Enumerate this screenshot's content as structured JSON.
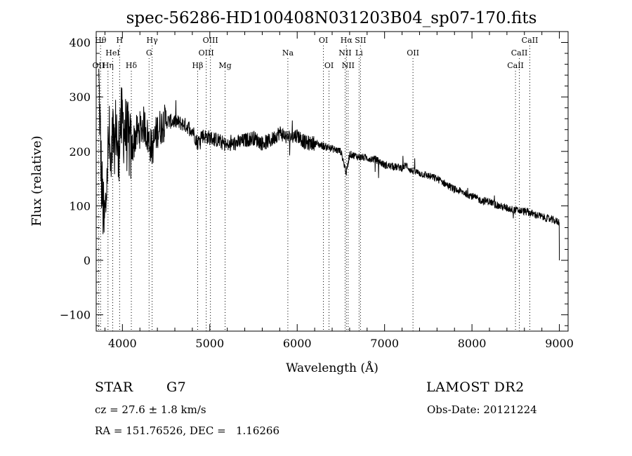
{
  "chart_data": {
    "type": "line",
    "title": "spec-56286-HD100408N031203B04_sp07-170.fits",
    "xlabel": "Wavelength (Å)",
    "ylabel": "Flux (relative)",
    "xlim": [
      3700,
      9100
    ],
    "ylim": [
      -130,
      420
    ],
    "xticks": [
      4000,
      5000,
      6000,
      7000,
      8000,
      9000
    ],
    "yticks": [
      -100,
      0,
      100,
      200,
      300,
      400
    ],
    "grid": false,
    "legend": "none",
    "series": [
      {
        "x": [
          3730,
          3760,
          3790,
          3810,
          3830,
          3850,
          3870,
          3890,
          3910,
          3930,
          3950,
          3970,
          4000,
          4050,
          4100,
          4150,
          4200,
          4250,
          4300,
          4340,
          4400,
          4500,
          4600,
          4700,
          4800,
          4860,
          4900,
          5000,
          5100,
          5200,
          5300,
          5400,
          5500,
          5600,
          5700,
          5800,
          5890,
          6000,
          6100,
          6200,
          6300,
          6400,
          6500,
          6563,
          6600,
          6700,
          6800,
          6900,
          7000,
          7100,
          7200,
          7250,
          7300,
          7400,
          7500,
          7600,
          7700,
          7800,
          7900,
          8000,
          8100,
          8200,
          8300,
          8400,
          8500,
          8600,
          8700,
          8800,
          8900,
          9000
        ],
        "values": [
          330,
          150,
          60,
          100,
          190,
          220,
          150,
          230,
          200,
          260,
          170,
          250,
          250,
          230,
          200,
          230,
          240,
          250,
          220,
          205,
          240,
          255,
          255,
          250,
          240,
          215,
          230,
          225,
          220,
          210,
          215,
          220,
          225,
          215,
          220,
          235,
          225,
          230,
          215,
          215,
          210,
          205,
          200,
          160,
          195,
          190,
          188,
          185,
          175,
          172,
          170,
          175,
          165,
          160,
          155,
          150,
          140,
          130,
          125,
          118,
          110,
          108,
          100,
          96,
          92,
          90,
          85,
          80,
          75,
          70
        ]
      }
    ],
    "line_markers": [
      {
        "label": "OII",
        "x": 3727,
        "row": 3
      },
      {
        "label": "Hθ",
        "x": 3750,
        "row": 1
      },
      {
        "label": "Hη",
        "x": 3835,
        "row": 3
      },
      {
        "label": "HeI",
        "x": 3889,
        "row": 2
      },
      {
        "label": "H",
        "x": 3968,
        "row": 1
      },
      {
        "label": "Hδ",
        "x": 4102,
        "row": 3
      },
      {
        "label": "Hγ",
        "x": 4340,
        "row": 1
      },
      {
        "label": "G",
        "x": 4305,
        "row": 2
      },
      {
        "label": "Hβ",
        "x": 4861,
        "row": 3
      },
      {
        "label": "OIII",
        "x": 5007,
        "row": 1
      },
      {
        "label": "OIII",
        "x": 4959,
        "row": 2
      },
      {
        "label": "Mg",
        "x": 5175,
        "row": 3
      },
      {
        "label": "Na",
        "x": 5893,
        "row": 2
      },
      {
        "label": "OI",
        "x": 6300,
        "row": 1
      },
      {
        "label": "OI",
        "x": 6364,
        "row": 3
      },
      {
        "label": "Hα",
        "x": 6563,
        "row": 1
      },
      {
        "label": "NII",
        "x": 6548,
        "row": 2
      },
      {
        "label": "NII",
        "x": 6583,
        "row": 3
      },
      {
        "label": "SII",
        "x": 6724,
        "row": 1
      },
      {
        "label": "Li",
        "x": 6708,
        "row": 2
      },
      {
        "label": "OII",
        "x": 7325,
        "row": 2
      },
      {
        "label": "CaII",
        "x": 8662,
        "row": 1
      },
      {
        "label": "CaII",
        "x": 8542,
        "row": 2
      },
      {
        "label": "CaII",
        "x": 8498,
        "row": 3
      }
    ]
  },
  "info": {
    "object_type": "STAR",
    "subclass": "G7",
    "survey": "LAMOST DR2",
    "redshift": "cz = 27.6 ± 1.8 km/s",
    "obs_date": "Obs-Date: 20121224",
    "coords": "RA = 151.76526, DEC =   1.16266"
  }
}
